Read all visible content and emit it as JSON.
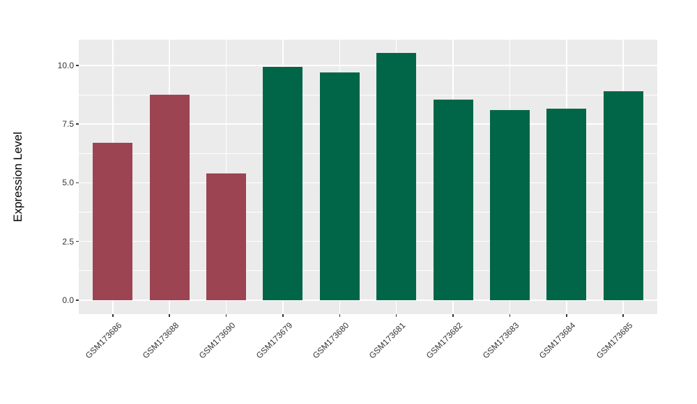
{
  "figure": {
    "background": "#FFFFFF"
  },
  "chart_data": {
    "type": "bar",
    "title": "",
    "xlabel": "",
    "ylabel": "Expression Level",
    "categories": [
      "GSM173686",
      "GSM173688",
      "GSM173690",
      "GSM173679",
      "GSM173680",
      "GSM173681",
      "GSM173682",
      "GSM173683",
      "GSM173684",
      "GSM173685"
    ],
    "values": [
      6.7,
      8.75,
      5.4,
      9.95,
      9.7,
      10.55,
      8.55,
      8.1,
      8.15,
      8.9
    ],
    "bar_colors": [
      "#9C4452",
      "#9C4452",
      "#9C4452",
      "#016647",
      "#016647",
      "#016647",
      "#016647",
      "#016647",
      "#016647",
      "#016647"
    ],
    "color_groups": {
      "maroon": "#9C4452",
      "green": "#016647"
    },
    "y_ticks": [
      0.0,
      2.5,
      5.0,
      7.5,
      10.0
    ],
    "y_tick_labels": [
      "0.0",
      "2.5",
      "5.0",
      "7.5",
      "10.0"
    ],
    "y_minor_ticks": [
      1.25,
      3.75,
      6.25,
      8.75
    ],
    "ylim": [
      -0.6,
      11.1
    ],
    "bar_width_fraction": 0.7,
    "grid": true,
    "legend": "none",
    "panel_background": "#EBEBEB",
    "grid_color": "#FFFFFF",
    "tick_color": "#333333",
    "text_color": "#333333",
    "x_label_angle": 45
  }
}
